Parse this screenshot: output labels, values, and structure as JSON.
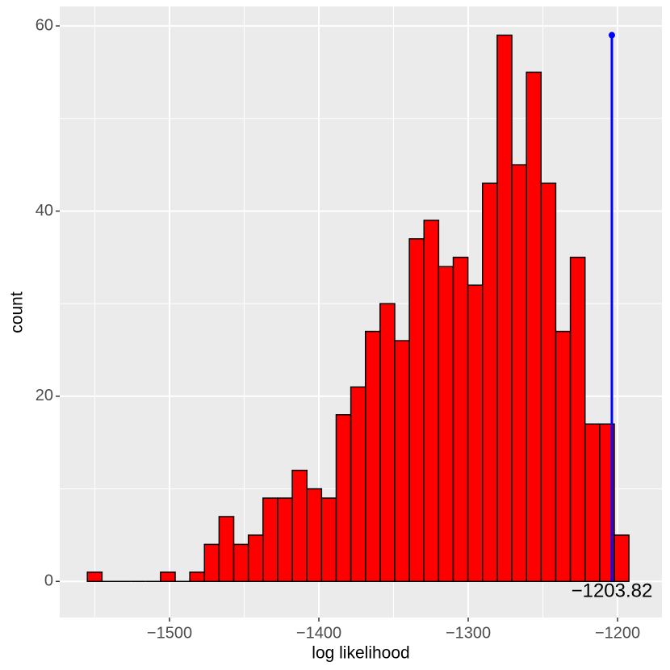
{
  "chart_data": {
    "type": "histogram",
    "x_label": "log likelihood",
    "y_label": "count",
    "bins": [
      -1555,
      -1545.2,
      -1535.4,
      -1525.6,
      -1515.8,
      -1506,
      -1496.2,
      -1486.4,
      -1476.6,
      -1466.8,
      -1457,
      -1447.2,
      -1437.4,
      -1427.6,
      -1417.8,
      -1408,
      -1398.2,
      -1388.4,
      -1378.6,
      -1368.8,
      -1359,
      -1349.2,
      -1339.4,
      -1329.6,
      -1319.8,
      -1310,
      -1300.2,
      -1290.4,
      -1280.6,
      -1270.8,
      -1261,
      -1251.2,
      -1241.4,
      -1231.6,
      -1221.8,
      -1212,
      -1202.2,
      -1192.4
    ],
    "values": [
      1,
      0,
      0,
      0,
      0,
      1,
      0,
      1,
      4,
      7,
      4,
      5,
      9,
      9,
      12,
      10,
      9,
      18,
      21,
      27,
      30,
      26,
      37,
      39,
      34,
      35,
      32,
      43,
      59,
      45,
      55,
      43,
      27,
      35,
      17,
      17,
      5
    ],
    "color": "#ff0000",
    "edge_color": "#000000",
    "xlim": [
      -1573.5,
      -1170.3
    ],
    "ylim": [
      -3.9,
      62.1
    ],
    "xticks": [
      {
        "value": -1500,
        "label": "−1500"
      },
      {
        "value": -1400,
        "label": "−1400"
      },
      {
        "value": -1300,
        "label": "−1300"
      },
      {
        "value": -1200,
        "label": "−1200"
      }
    ],
    "yticks": [
      0,
      20,
      40,
      60
    ],
    "minor_xticks": [
      -1550,
      -1450,
      -1350,
      -1250
    ],
    "minor_yticks": [
      10,
      30,
      50
    ],
    "grid": true,
    "vline": {
      "x": -1203.82,
      "ymax": 59,
      "color": "#0000ff",
      "label": "−1203.82"
    }
  }
}
